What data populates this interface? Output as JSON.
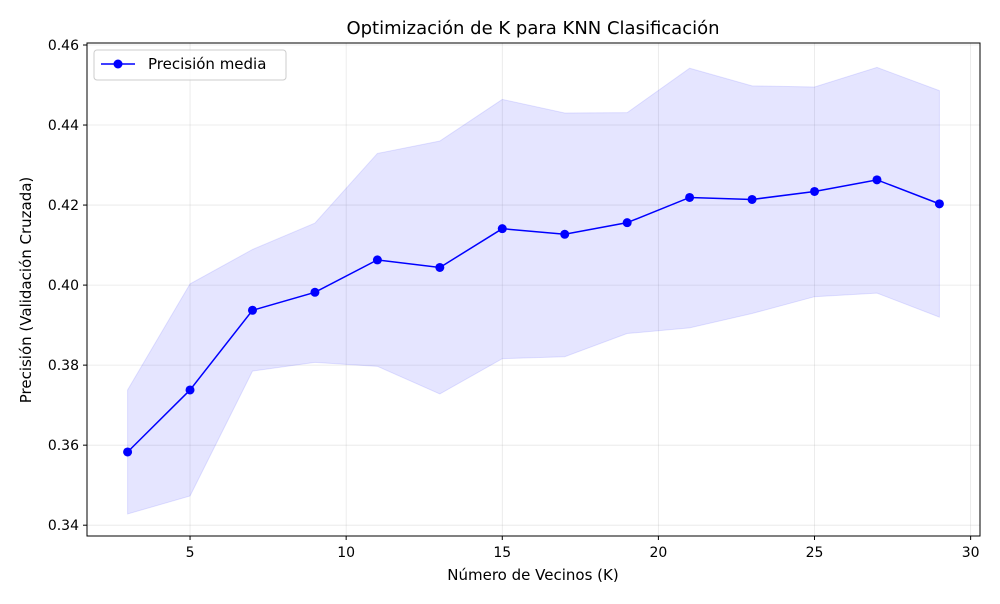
{
  "chart_data": {
    "type": "line",
    "title": "Optimización de K para KNN Clasificación",
    "xlabel": "Número de Vecinos (K)",
    "ylabel": "Precisión (Validación Cruzada)",
    "xlim": [
      1.7,
      30.3
    ],
    "ylim": [
      0.3373,
      0.4605
    ],
    "xticks": [
      5,
      10,
      15,
      20,
      25,
      30
    ],
    "yticks": [
      0.34,
      0.36,
      0.38,
      0.4,
      0.42,
      0.44,
      0.46
    ],
    "xtick_labels": [
      "5",
      "10",
      "15",
      "20",
      "25",
      "30"
    ],
    "ytick_labels": [
      "0.34",
      "0.36",
      "0.38",
      "0.40",
      "0.42",
      "0.44",
      "0.46"
    ],
    "grid": true,
    "legend_position": "upper-left",
    "series": [
      {
        "name": "Precisión media",
        "color": "#0000ff",
        "marker": "circle",
        "x": [
          3,
          5,
          7,
          9,
          11,
          13,
          15,
          17,
          19,
          21,
          23,
          25,
          27,
          29
        ],
        "y": [
          0.3583,
          0.3738,
          0.3937,
          0.3982,
          0.4063,
          0.4044,
          0.4141,
          0.4127,
          0.4156,
          0.4219,
          0.4214,
          0.4234,
          0.4263,
          0.4203
        ]
      }
    ],
    "band": {
      "color": "#0000ff",
      "opacity": 0.1,
      "x": [
        3,
        5,
        7,
        9,
        11,
        13,
        15,
        17,
        19,
        21,
        23,
        25,
        27,
        29
      ],
      "lower": [
        0.3428,
        0.3473,
        0.3785,
        0.3807,
        0.3797,
        0.3728,
        0.3816,
        0.3821,
        0.3879,
        0.3893,
        0.3929,
        0.3971,
        0.398,
        0.392
      ],
      "upper": [
        0.3738,
        0.4003,
        0.4089,
        0.4155,
        0.4329,
        0.436,
        0.4464,
        0.443,
        0.4431,
        0.4542,
        0.4498,
        0.4495,
        0.4544,
        0.4486
      ]
    }
  }
}
